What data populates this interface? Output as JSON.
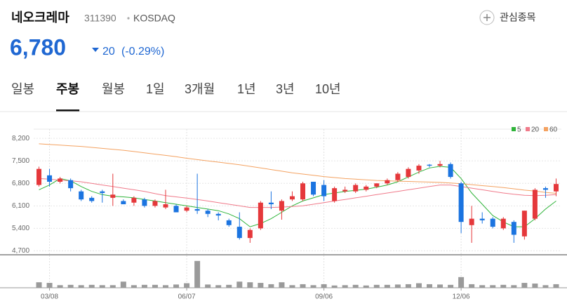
{
  "header": {
    "name": "네오크레마",
    "code": "311390",
    "market": "KOSDAQ",
    "watch": "관심종목",
    "price": "6,780",
    "change": "20",
    "change_pct": "(-0.29%)"
  },
  "tabs": [
    "일봉",
    "주봉",
    "월봉",
    "1일",
    "3개월",
    "1년",
    "3년",
    "10년"
  ],
  "active_tab": 1,
  "chart_data": {
    "type": "candlestick",
    "categories": [
      null,
      "03/08",
      null,
      null,
      null,
      null,
      null,
      null,
      null,
      null,
      null,
      null,
      null,
      null,
      "06/07",
      null,
      null,
      null,
      null,
      null,
      null,
      null,
      null,
      null,
      null,
      null,
      null,
      "09/06",
      null,
      null,
      null,
      null,
      null,
      null,
      null,
      null,
      null,
      null,
      null,
      null,
      "12/06",
      null,
      null,
      null,
      null,
      null,
      null,
      null,
      null,
      null
    ],
    "open": [
      6750,
      7050,
      6850,
      6900,
      6550,
      6350,
      6550,
      6350,
      6250,
      6200,
      6300,
      6100,
      6050,
      6100,
      5950,
      6000,
      5950,
      5850,
      5650,
      5450,
      5100,
      5400,
      6200,
      5950,
      6300,
      6300,
      6850,
      6750,
      6250,
      6550,
      6550,
      6600,
      6700,
      6800,
      6900,
      7000,
      7200,
      7380,
      7350,
      7400,
      6800,
      5500,
      5700,
      5700,
      5400,
      5600,
      5150,
      5700,
      6650,
      6550
    ],
    "high": [
      7320,
      7250,
      7000,
      6950,
      6600,
      6400,
      6600,
      7100,
      6300,
      6400,
      6350,
      6300,
      6600,
      6150,
      6100,
      7100,
      6000,
      5900,
      5700,
      5900,
      5400,
      6250,
      6550,
      6300,
      6550,
      6850,
      6850,
      6900,
      6700,
      6700,
      6800,
      6750,
      6800,
      6950,
      7150,
      7300,
      7400,
      7400,
      7500,
      7450,
      6850,
      6100,
      5900,
      5750,
      5750,
      5650,
      5950,
      6650,
      6700,
      6950
    ],
    "low": [
      6700,
      6700,
      6800,
      6550,
      6250,
      6200,
      6200,
      6100,
      6150,
      6100,
      6050,
      6050,
      6000,
      5900,
      5900,
      5850,
      5750,
      5650,
      5450,
      5050,
      4950,
      5350,
      6000,
      5670,
      6250,
      6250,
      6400,
      6250,
      6200,
      6500,
      6500,
      6550,
      6650,
      6750,
      6850,
      6950,
      7100,
      7300,
      7300,
      6950,
      5250,
      4950,
      5550,
      5400,
      5350,
      4950,
      5050,
      5650,
      6350,
      6400
    ],
    "close": [
      7250,
      6850,
      6950,
      6650,
      6300,
      6250,
      6500,
      6450,
      6150,
      6350,
      6100,
      6250,
      6150,
      5900,
      6050,
      5950,
      5850,
      5800,
      5500,
      5100,
      5350,
      6200,
      6150,
      6250,
      6400,
      6800,
      6450,
      6400,
      6650,
      6600,
      6750,
      6700,
      6800,
      6900,
      7100,
      7250,
      7350,
      7350,
      7400,
      7000,
      5600,
      5700,
      5650,
      5450,
      5700,
      5200,
      5950,
      6600,
      6600,
      6780
    ],
    "volume": [
      17,
      15,
      8,
      9,
      8,
      9,
      8,
      8,
      19,
      8,
      9,
      9,
      8,
      10,
      14,
      83,
      10,
      8,
      9,
      19,
      17,
      15,
      11,
      17,
      8,
      11,
      8,
      11,
      7,
      8,
      9,
      7,
      9,
      9,
      10,
      11,
      14,
      11,
      10,
      9,
      33,
      11,
      8,
      8,
      9,
      8,
      15,
      13,
      8,
      11
    ],
    "volume_ylim": [
      0,
      100
    ],
    "up_color": "#e5383b",
    "down_color": "#1b74e0",
    "volume_color": "#9a9a9a",
    "series": [
      {
        "name": "5",
        "color": "#2fb43a",
        "values": [
          6600,
          6750,
          6950,
          6880,
          6700,
          6550,
          6450,
          6400,
          6380,
          6350,
          6300,
          6250,
          6200,
          6150,
          6100,
          6050,
          6000,
          5950,
          5850,
          5700,
          5450,
          5550,
          5700,
          5900,
          6100,
          6250,
          6350,
          6450,
          6500,
          6550,
          6580,
          6620,
          6680,
          6750,
          6850,
          7000,
          7150,
          7280,
          7330,
          7300,
          6950,
          6500,
          6150,
          5800,
          5600,
          5450,
          5450,
          5700,
          6000,
          6250
        ]
      },
      {
        "name": "20",
        "color": "#f07a8a",
        "values": [
          6950,
          6930,
          6900,
          6880,
          6850,
          6800,
          6750,
          6700,
          6650,
          6600,
          6550,
          6480,
          6420,
          6380,
          6340,
          6300,
          6250,
          6200,
          6150,
          6100,
          6050,
          6050,
          6050,
          6060,
          6080,
          6100,
          6150,
          6200,
          6250,
          6300,
          6350,
          6400,
          6450,
          6500,
          6550,
          6600,
          6650,
          6700,
          6750,
          6750,
          6700,
          6650,
          6600,
          6550,
          6500,
          6460,
          6430,
          6420,
          6430,
          6450
        ]
      },
      {
        "name": "60",
        "color": "#f4a261",
        "values": [
          8030,
          8010,
          7990,
          7970,
          7950,
          7920,
          7890,
          7860,
          7830,
          7790,
          7750,
          7710,
          7670,
          7630,
          7580,
          7540,
          7500,
          7460,
          7420,
          7380,
          7330,
          7280,
          7230,
          7180,
          7130,
          7090,
          7050,
          7010,
          6980,
          6950,
          6930,
          6910,
          6890,
          6880,
          6870,
          6860,
          6850,
          6840,
          6830,
          6810,
          6790,
          6760,
          6730,
          6700,
          6670,
          6630,
          6590,
          6560,
          6520,
          6490
        ]
      }
    ],
    "ylim": [
      4600,
      8400
    ],
    "yticks": [
      {
        "value": 8200,
        "label": "8,200"
      },
      {
        "value": 7500,
        "label": "7,500"
      },
      {
        "value": 6800,
        "label": "6,800"
      },
      {
        "value": 6100,
        "label": "6,100"
      },
      {
        "value": 5400,
        "label": "5,400"
      },
      {
        "value": 4700,
        "label": "4,700"
      }
    ],
    "grid": true
  }
}
